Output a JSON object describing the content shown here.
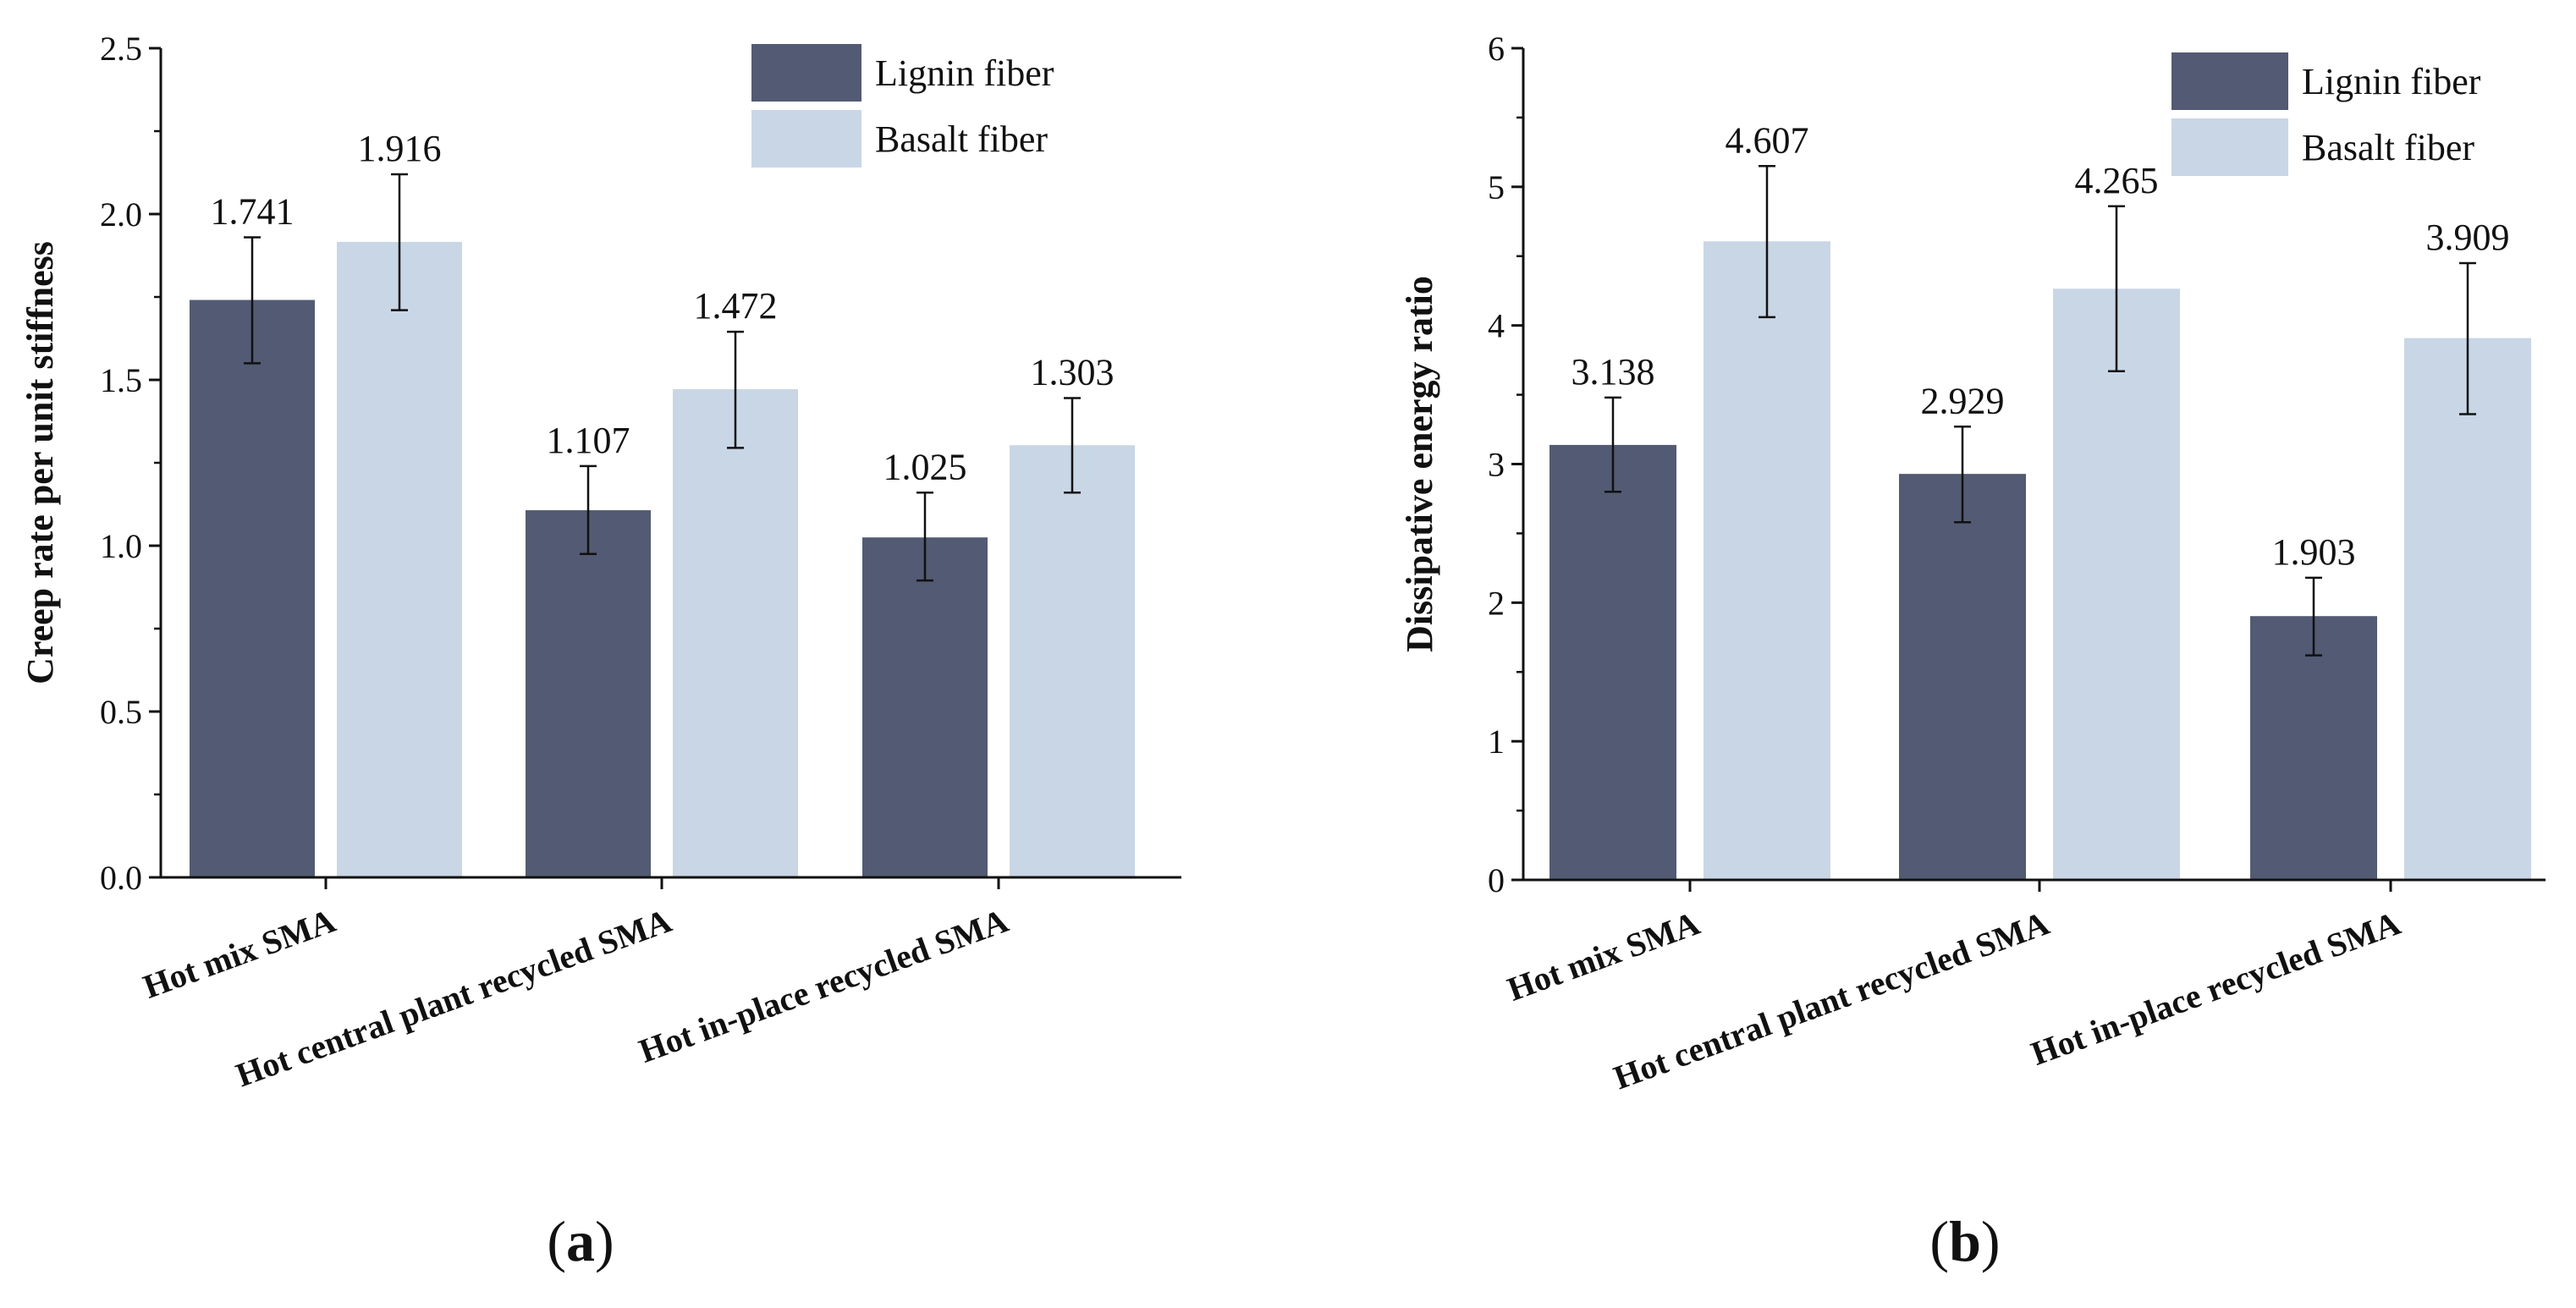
{
  "colors": {
    "lignin": "#525b73",
    "basalt": "#c9d6e6",
    "axis": "#111111"
  },
  "chart_data": [
    {
      "type": "bar",
      "panel": "a",
      "panel_letter": "a",
      "ylabel": "Creep rate per unit stiffness",
      "xlabel": "",
      "ylim": [
        0,
        2.5
      ],
      "yticks": [
        "0.0",
        "0.5",
        "1.0",
        "1.5",
        "2.0",
        "2.5"
      ],
      "ytick_values": [
        0,
        0.5,
        1.0,
        1.5,
        2.0,
        2.5
      ],
      "categories": [
        "Hot mix SMA",
        "Hot central plant recycled SMA",
        "Hot in-place recycled SMA"
      ],
      "legend_position": "top-right",
      "series": [
        {
          "name": "Lignin fiber",
          "color_key": "lignin",
          "values": [
            1.741,
            1.107,
            1.025
          ],
          "labels": [
            "1.741",
            "1.107",
            "1.025"
          ],
          "err_low": [
            1.55,
            0.975,
            0.895
          ],
          "err_high": [
            1.93,
            1.24,
            1.16
          ]
        },
        {
          "name": "Basalt fiber",
          "color_key": "basalt",
          "values": [
            1.916,
            1.472,
            1.303
          ],
          "labels": [
            "1.916",
            "1.472",
            "1.303"
          ],
          "err_low": [
            1.71,
            1.295,
            1.16
          ],
          "err_high": [
            2.12,
            1.645,
            1.445
          ]
        }
      ]
    },
    {
      "type": "bar",
      "panel": "b",
      "panel_letter": "b",
      "ylabel": "Dissipative energy ratio",
      "xlabel": "",
      "ylim": [
        0,
        6
      ],
      "yticks": [
        "0",
        "1",
        "2",
        "3",
        "4",
        "5",
        "6"
      ],
      "ytick_values": [
        0,
        1,
        2,
        3,
        4,
        5,
        6
      ],
      "categories": [
        "Hot mix SMA",
        "Hot central plant recycled SMA",
        "Hot in-place recycled SMA"
      ],
      "legend_position": "top-right",
      "series": [
        {
          "name": "Lignin fiber",
          "color_key": "lignin",
          "values": [
            3.138,
            2.929,
            1.903
          ],
          "labels": [
            "3.138",
            "2.929",
            "1.903"
          ],
          "err_low": [
            2.8,
            2.58,
            1.62
          ],
          "err_high": [
            3.48,
            3.27,
            2.18
          ]
        },
        {
          "name": "Basalt fiber",
          "color_key": "basalt",
          "values": [
            4.607,
            4.265,
            3.909
          ],
          "labels": [
            "4.607",
            "4.265",
            "3.909"
          ],
          "err_low": [
            4.06,
            3.67,
            3.36
          ],
          "err_high": [
            5.15,
            4.86,
            4.45
          ]
        }
      ]
    }
  ]
}
